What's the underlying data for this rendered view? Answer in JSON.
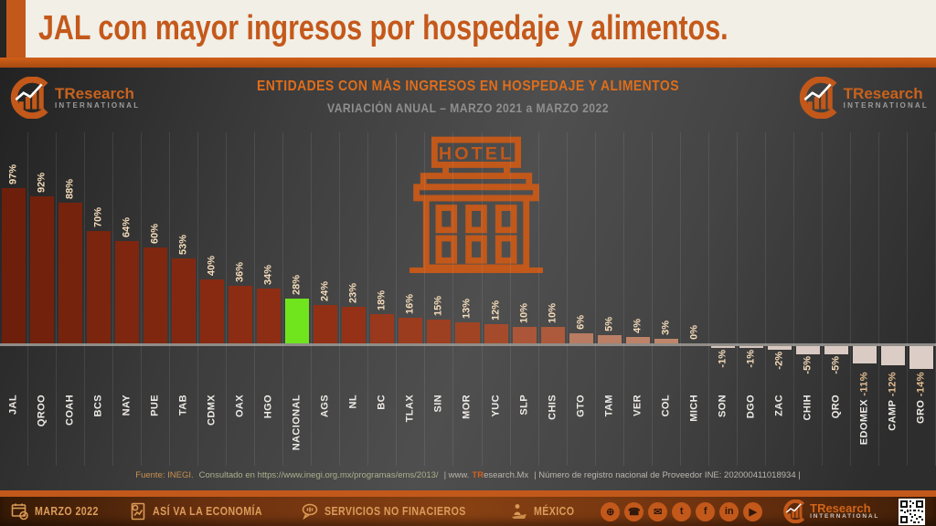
{
  "title_bar": {
    "text": "JAL con mayor ingresos por hospedaje y alimentos."
  },
  "brand": {
    "name": "TResearch",
    "sub": "INTERNATIONAL"
  },
  "chart_header": {
    "title": "ENTIDADES CON MÁS INGRESOS EN HOSPEDAJE Y ALIMENTOS",
    "subtitle": "VARIACIÓN ANUAL – MARZO 2021 a MARZO 2022"
  },
  "hotel": {
    "sign": "HOTEL"
  },
  "chart_data": {
    "type": "bar",
    "title": "ENTIDADES CON MÁS INGRESOS EN HOSPEDAJE Y ALIMENTOS",
    "subtitle": "VARIACIÓN ANUAL – MARZO 2021 a MARZO 2022",
    "unit": "%",
    "ylim": [
      -14,
      97
    ],
    "grid": "vertical-only",
    "value_labels": "rotated-90",
    "highlight": {
      "category": "NACIONAL",
      "color": "#70E51E"
    },
    "categories": [
      "JAL",
      "QROO",
      "COAH",
      "BCS",
      "NAY",
      "PUE",
      "TAB",
      "CDMX",
      "OAX",
      "HGO",
      "NACIONAL",
      "AGS",
      "NL",
      "BC",
      "TLAX",
      "SIN",
      "MOR",
      "YUC",
      "SLP",
      "CHIS",
      "GTO",
      "TAM",
      "VER",
      "COL",
      "MICH",
      "SON",
      "DGO",
      "ZAC",
      "CHIH",
      "QRO",
      "EDOMEX",
      "CAMP",
      "GRO"
    ],
    "values": [
      97,
      92,
      88,
      70,
      64,
      60,
      53,
      40,
      36,
      34,
      28,
      24,
      23,
      18,
      16,
      15,
      13,
      12,
      10,
      10,
      6,
      5,
      4,
      3,
      0,
      -1,
      -1,
      -2,
      -5,
      -5,
      -11,
      -12,
      -14
    ],
    "bar_colors": [
      "#6E1F0B",
      "#72210C",
      "#76230D",
      "#7B250E",
      "#7E260F",
      "#802710",
      "#832810",
      "#882A12",
      "#8B2C13",
      "#8D2D13",
      "#70E51E",
      "#923016",
      "#943117",
      "#99381C",
      "#9B3C1F",
      "#9D3F21",
      "#A04424",
      "#A54B2B",
      "#AB5638",
      "#AD593B",
      "#B87C62",
      "#BA7F65",
      "#BD8368",
      "#BF866B",
      "#BF866B",
      "#D5C6BE",
      "#D6C7BF",
      "#D7C8C0",
      "#D8C9C2",
      "#D9CAC3",
      "#DACBC4",
      "#DBCCC5",
      "#DCCDC6"
    ]
  },
  "source": {
    "fuente": "Fuente: INEGI.",
    "consultado": "Consultado en https://www.inegi.org.mx/programas/ems/2013/",
    "pipe1": "| www.",
    "tr": "TR",
    "site": "esearch.Mx",
    "registro": "| Número de registro nacional de Proveedor INE: 202000411018934 |"
  },
  "footer": {
    "date": "MARZO 2022",
    "tagline": "ASÍ VA LA ECONOMÍA",
    "services": "SERVICIOS NO FINACIEROS",
    "country": "MÉXICO",
    "social": [
      "globe",
      "phone",
      "mail",
      "twitter",
      "facebook",
      "linkedin",
      "youtube"
    ]
  },
  "colors": {
    "accent": "#C2581A",
    "title": "#C4591B",
    "green": "#70E51E",
    "bar_dark": "#6E1F0B",
    "bar_light": "#DCCDC6",
    "band_bg": "#F2EFE7"
  }
}
